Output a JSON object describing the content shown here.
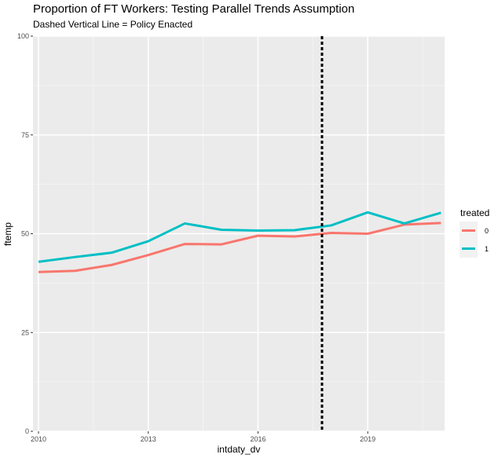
{
  "chart_data": {
    "type": "line",
    "title": "Proportion of FT Workers: Testing Parallel Trends Assumption",
    "subtitle": "Dashed Vertical Line = Policy Enacted",
    "xlabel": "intdaty_dv",
    "ylabel": "ftemp",
    "xlim": [
      2009.85,
      2021.1
    ],
    "ylim": [
      0,
      100
    ],
    "x_ticks": [
      2010,
      2013,
      2016,
      2019
    ],
    "y_ticks": [
      0,
      25,
      50,
      75,
      100
    ],
    "x": [
      2010,
      2011,
      2012,
      2013,
      2014,
      2015,
      2016,
      2017,
      2018,
      2019,
      2020,
      2021
    ],
    "series": [
      {
        "name": "0",
        "color": "#F8766D",
        "values": [
          40.3,
          40.6,
          42.1,
          44.6,
          47.4,
          47.3,
          49.5,
          49.3,
          50.2,
          50.0,
          52.3,
          52.7
        ]
      },
      {
        "name": "1",
        "color": "#00BFC4",
        "values": [
          42.9,
          44.1,
          45.2,
          48.1,
          52.6,
          51.0,
          50.8,
          50.9,
          52.1,
          55.4,
          52.6,
          55.3
        ]
      }
    ],
    "vline": {
      "x": 2017.75,
      "style": "dashed",
      "color": "#000000"
    },
    "legend": {
      "title": "treated",
      "position": "right"
    },
    "grid": true
  }
}
